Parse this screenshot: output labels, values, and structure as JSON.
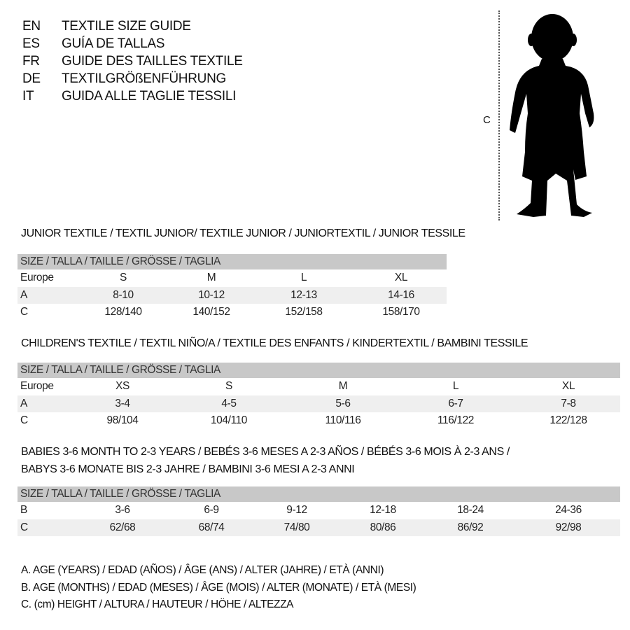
{
  "guide_titles": [
    {
      "code": "EN",
      "text": "TEXTILE SIZE GUIDE"
    },
    {
      "code": "ES",
      "text": "GUÍA DE TALLAS"
    },
    {
      "code": "FR",
      "text": "GUIDE DES TAILLES TEXTILE"
    },
    {
      "code": "DE",
      "text": "TEXTILGRÖßENFÜHRUNG"
    },
    {
      "code": "IT",
      "text": "GUIDA ALLE TAGLIE TESSILI"
    }
  ],
  "figure": {
    "measure_label": "C",
    "icon": "child-silhouette"
  },
  "junior": {
    "title": "JUNIOR TEXTILE / TEXTIL JUNIOR/ TEXTILE JUNIOR / JUNIORTEXTIL / JUNIOR TESSILE",
    "header": "SIZE / TALLA / TAILLE / GRÖSSE / TAGLIA",
    "rows": [
      {
        "label": "Europe",
        "values": [
          "S",
          "M",
          "L",
          "XL"
        ]
      },
      {
        "label": "A",
        "values": [
          "8-10",
          "10-12",
          "12-13",
          "14-16"
        ]
      },
      {
        "label": "C",
        "values": [
          "128/140",
          "140/152",
          "152/158",
          "158/170"
        ]
      }
    ]
  },
  "children": {
    "title": "CHILDREN'S TEXTILE / TEXTIL NIÑO/A / TEXTILE DES ENFANTS / KINDERTEXTIL / BAMBINI TESSILE",
    "header": "SIZE / TALLA / TAILLE / GRÖSSE / TAGLIA",
    "rows": [
      {
        "label": "Europe",
        "values": [
          "XS",
          "S",
          "M",
          "L",
          "XL"
        ]
      },
      {
        "label": "A",
        "values": [
          "3-4",
          "4-5",
          "5-6",
          "6-7",
          "7-8"
        ]
      },
      {
        "label": "C",
        "values": [
          "98/104",
          "104/110",
          "110/116",
          "116/122",
          "122/128"
        ]
      }
    ]
  },
  "babies": {
    "title_line1": "BABIES 3-6 MONTH TO 2-3 YEARS / BEBÉS 3-6 MESES A 2-3 AÑOS / BÉBÉS 3-6 MOIS À 2-3 ANS /",
    "title_line2": "BABYS 3-6 MONATE BIS 2-3 JAHRE / BAMBINI 3-6 MESI A 2-3 ANNI",
    "header": "SIZE / TALLA / TAILLE / GRÖSSE / TAGLIA",
    "rows": [
      {
        "label": "B",
        "values": [
          "3-6",
          "6-9",
          "9-12",
          "12-18",
          "18-24",
          "24-36"
        ]
      },
      {
        "label": "C",
        "values": [
          "62/68",
          "68/74",
          "74/80",
          "80/86",
          "86/92",
          "92/98"
        ]
      }
    ]
  },
  "legend": [
    "A. AGE (YEARS) / EDAD (AÑOS) / ÂGE (ANS) / ALTER (JAHRE) / ETÀ (ANNI)",
    "B. AGE (MONTHS) / EDAD (MESES) / ÂGE (MOIS) / ALTER (MONATE) / ETÀ (MESI)",
    "C. (cm) HEIGHT / ALTURA / HAUTEUR / HÖHE / ALTEZZA"
  ],
  "colors": {
    "header_bg": "#c8c8c8",
    "alt_row_bg": "#efefef"
  }
}
